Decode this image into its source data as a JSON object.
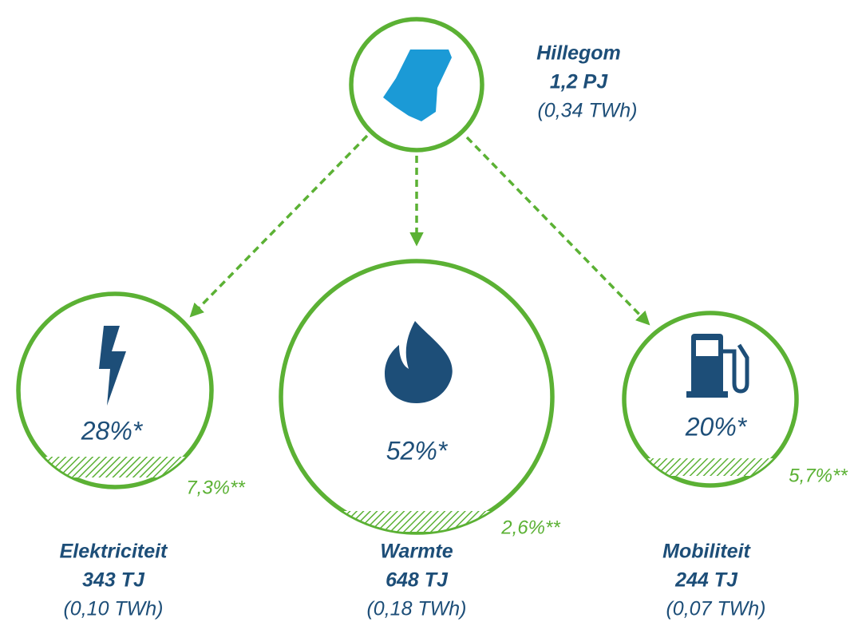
{
  "source": {
    "name": "Hillegom",
    "energy": "1,2 PJ",
    "twh": "(0,34 TWh)"
  },
  "nodes": [
    {
      "name": "Elektriciteit",
      "energy": "343 TJ",
      "twh": "(0,10 TWh)",
      "share": "28%*",
      "renewable": "7,3%**"
    },
    {
      "name": "Warmte",
      "energy": "648 TJ",
      "twh": "(0,18 TWh)",
      "share": "52%*",
      "renewable": "2,6%**"
    },
    {
      "name": "Mobiliteit",
      "energy": "244 TJ",
      "twh": "(0,07 TWh)",
      "share": "20%*",
      "renewable": "5,7%**"
    }
  ]
}
